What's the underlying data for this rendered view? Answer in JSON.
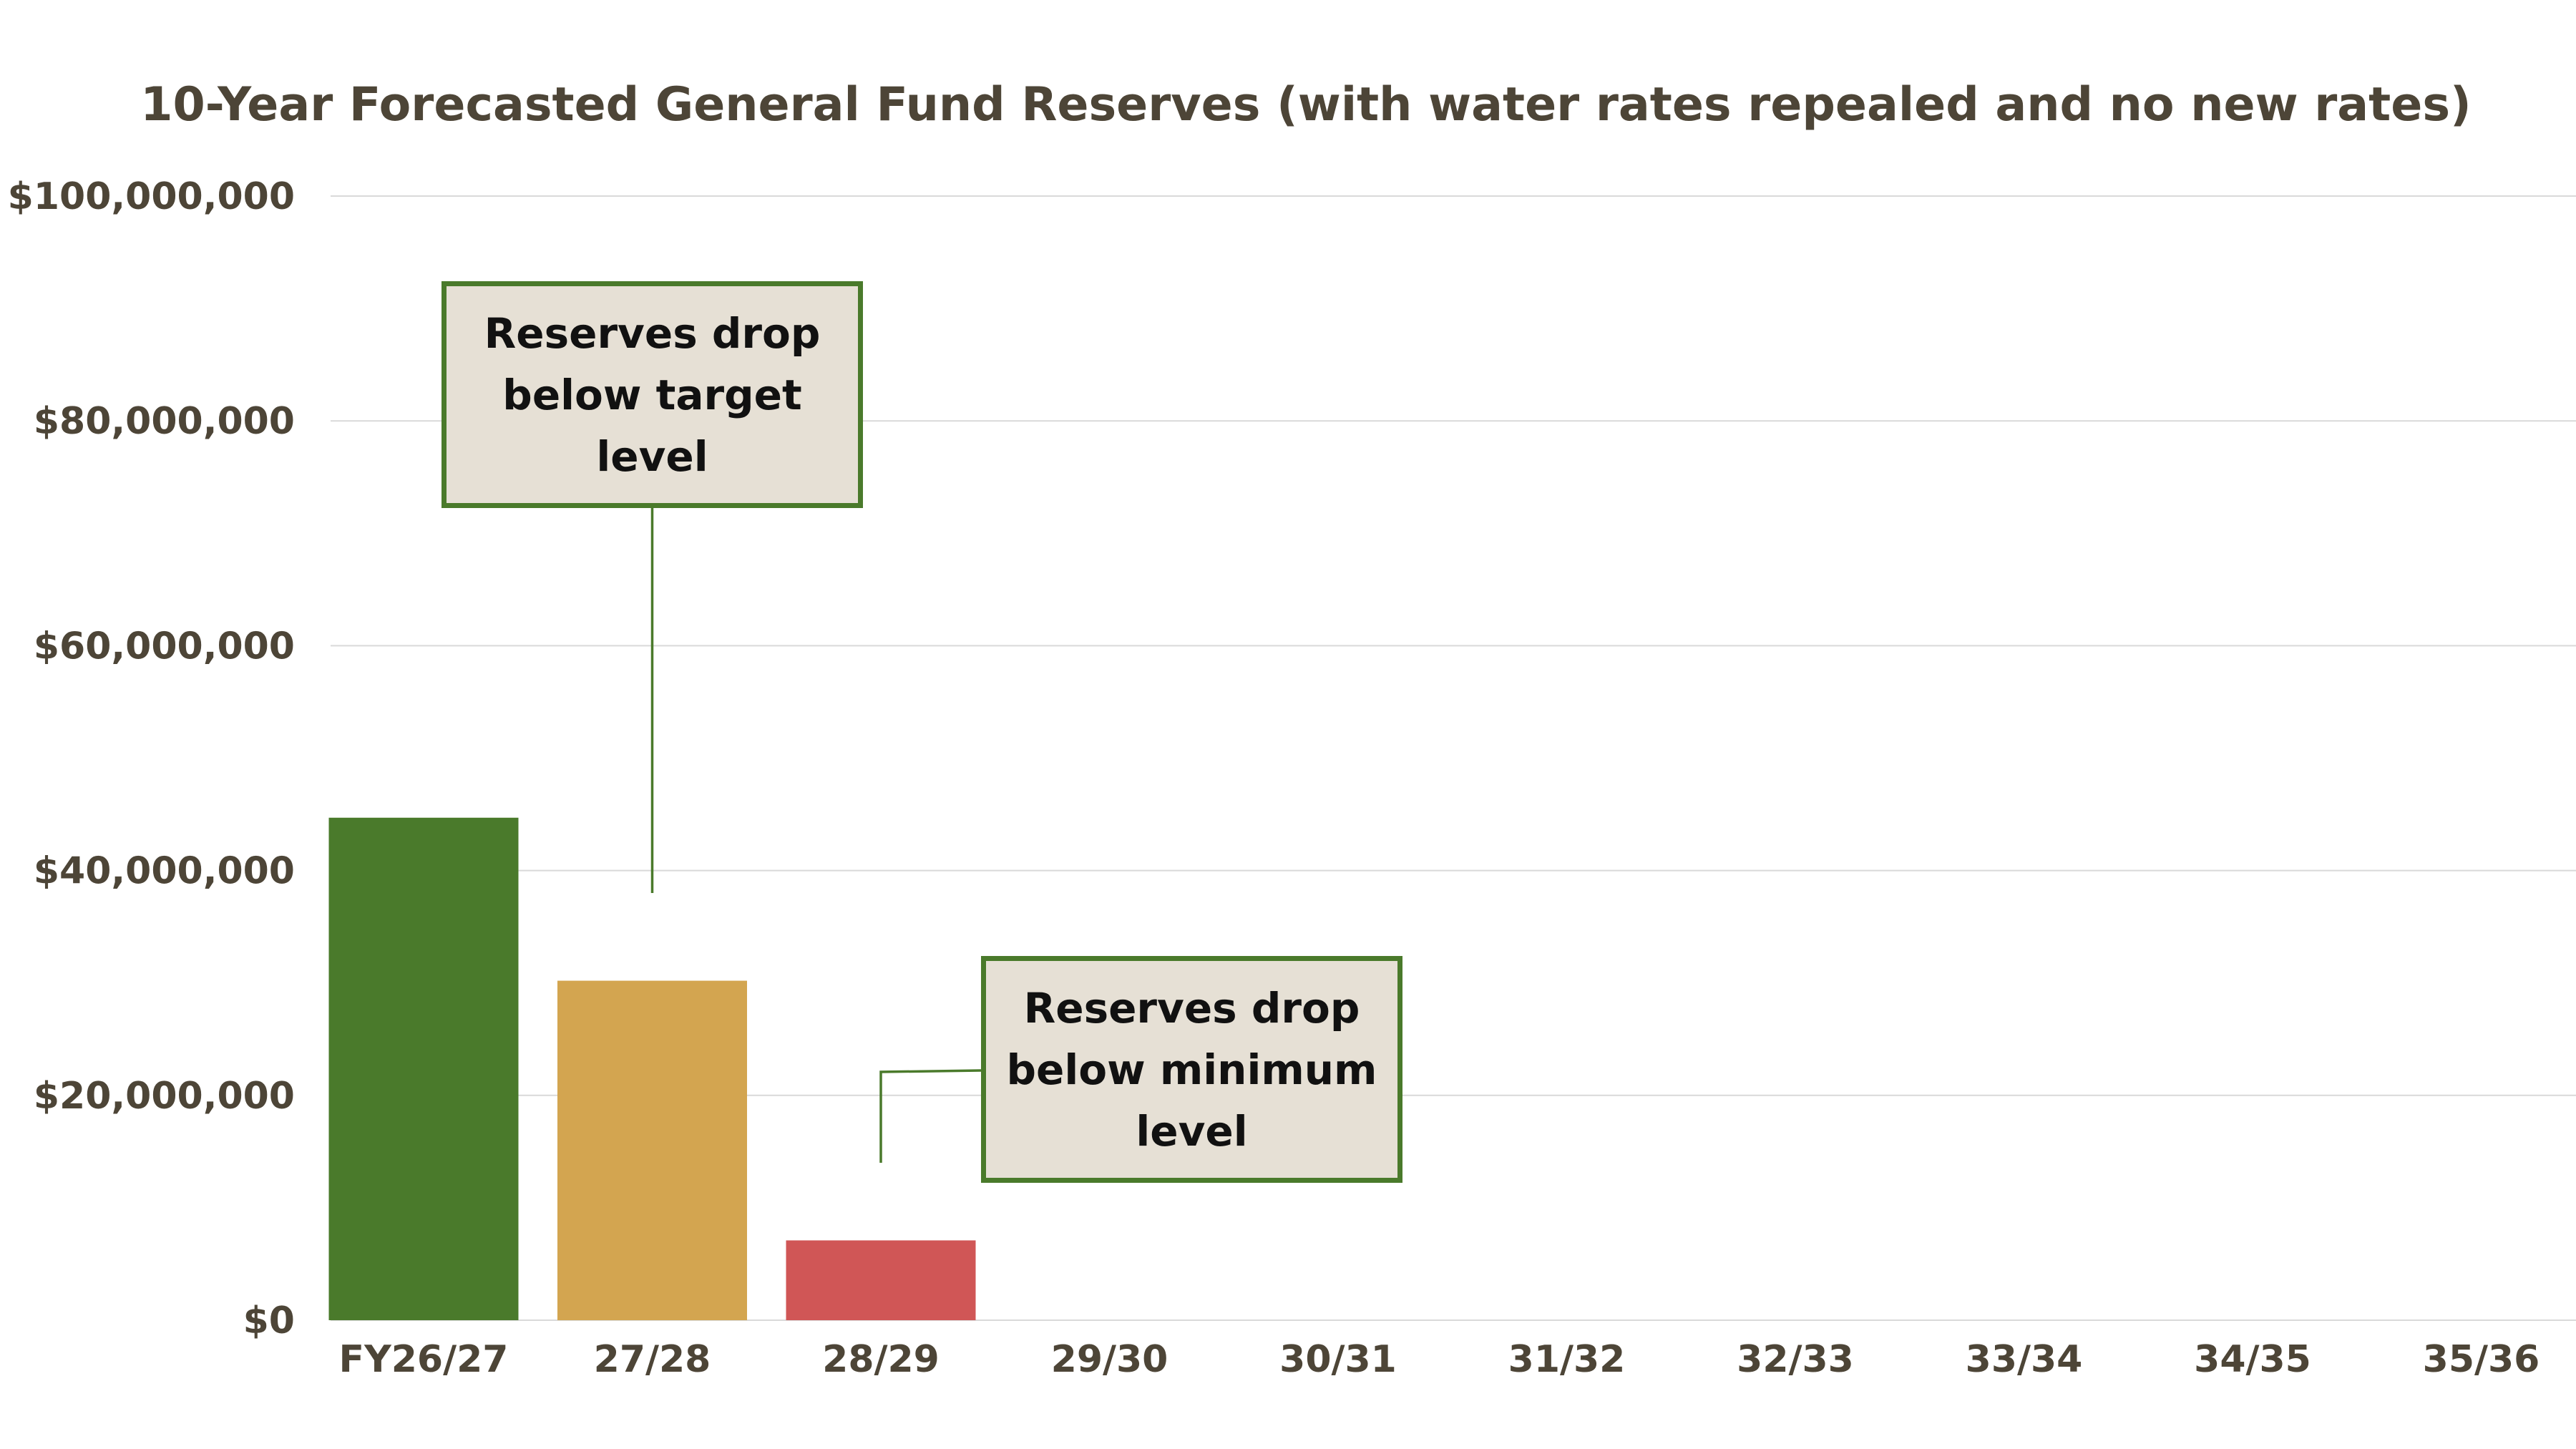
{
  "chart_data": {
    "type": "bar",
    "title": "10-Year Forecasted General Fund Reserves (with water rates repealed and no new rates)",
    "xlabel": "",
    "ylabel": "",
    "categories": [
      "FY26/27",
      "27/28",
      "28/29",
      "29/30",
      "30/31",
      "31/32",
      "32/33",
      "33/34",
      "34/35",
      "35/36"
    ],
    "values": [
      44700000,
      30200000,
      7100000,
      0,
      0,
      0,
      0,
      0,
      0,
      0
    ],
    "bar_colors": [
      "#4a7a2b",
      "#d3a550",
      "#d05656",
      "#d05656",
      "#d05656",
      "#d05656",
      "#d05656",
      "#d05656",
      "#d05656",
      "#d05656"
    ],
    "ylim": [
      0,
      100000000
    ],
    "y_ticks": [
      0,
      20000000,
      40000000,
      60000000,
      80000000,
      100000000
    ],
    "y_tick_labels": [
      "$0",
      "$20,000,000",
      "$40,000,000",
      "$60,000,000",
      "$80,000,000",
      "$100,000,000"
    ],
    "grid": true,
    "legend": "none",
    "annotations": [
      {
        "text": "Reserves drop\nbelow target\nlevel",
        "category": "27/28",
        "value": 38000000
      },
      {
        "text": "Reserves drop\nbelow minimum\nlevel",
        "category": "28/29",
        "value": 14000000
      }
    ]
  },
  "colors": {
    "text": "#4d4537",
    "grid": "#d9d9d9",
    "annotation_border": "#4a7a2b",
    "annotation_fill": "#e6e0d5"
  }
}
